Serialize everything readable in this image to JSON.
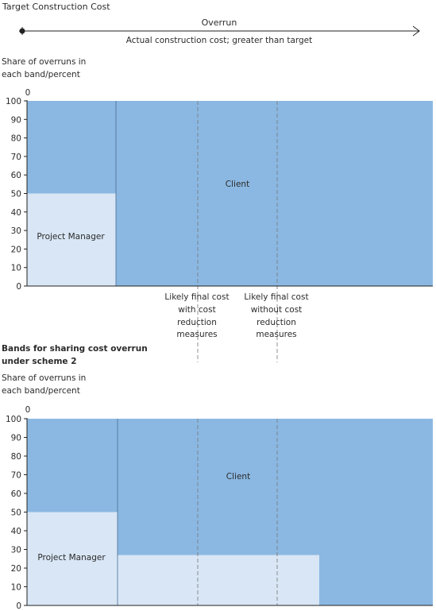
{
  "top": {
    "title": "Target Construction Cost",
    "arrow_label": "Overrun",
    "arrow_sublabel": "Actual construction cost; greater than target"
  },
  "colors": {
    "client": "#8bb8e2",
    "project_manager": "#d8e6f5",
    "axis": "#222222",
    "dashed": "#777777"
  },
  "chart_data": [
    {
      "type": "area",
      "ylabel": "Share of overruns in each band/percent",
      "ylim": [
        0,
        100
      ],
      "yticks": [
        0,
        10,
        20,
        30,
        40,
        50,
        60,
        70,
        80,
        90,
        100
      ],
      "x_start_label": "0",
      "grid": false,
      "series": [
        {
          "name": "Project Manager",
          "bands": [
            {
              "value": 50
            },
            {
              "value": 0
            }
          ]
        },
        {
          "name": "Client",
          "bands": [
            {
              "value": 50
            },
            {
              "value": 100
            }
          ]
        }
      ],
      "annotations": [
        "Likely final cost with cost reduction measures",
        "Likely final cost without cost reduction measures"
      ]
    },
    {
      "type": "area",
      "title": "Bands for sharing cost overrun under scheme 2",
      "ylabel": "Share of overruns in each band/percent",
      "ylim": [
        0,
        100
      ],
      "yticks": [
        0,
        10,
        20,
        30,
        40,
        50,
        60,
        70,
        80,
        90,
        100
      ],
      "x_start_label": "0",
      "grid": false,
      "series": [
        {
          "name": "Project Manager",
          "bands": [
            {
              "value": 50
            },
            {
              "value": 27
            },
            {
              "value": 0
            }
          ]
        },
        {
          "name": "Client",
          "bands": [
            {
              "value": 50
            },
            {
              "value": 73
            },
            {
              "value": 100
            }
          ]
        }
      ]
    }
  ],
  "labels": {
    "ylabel_line1": "Share of overruns in",
    "ylabel_line2": "each band/percent",
    "client": "Client",
    "pm": "Project Manager",
    "ann1": [
      "Likely final cost",
      "with cost",
      "reduction",
      "measures"
    ],
    "ann2": [
      "Likely final cost",
      "without cost",
      "reduction",
      "measures"
    ],
    "scheme_title_line1": "Bands for sharing cost overrun",
    "scheme_title_line2": "under scheme 2"
  }
}
